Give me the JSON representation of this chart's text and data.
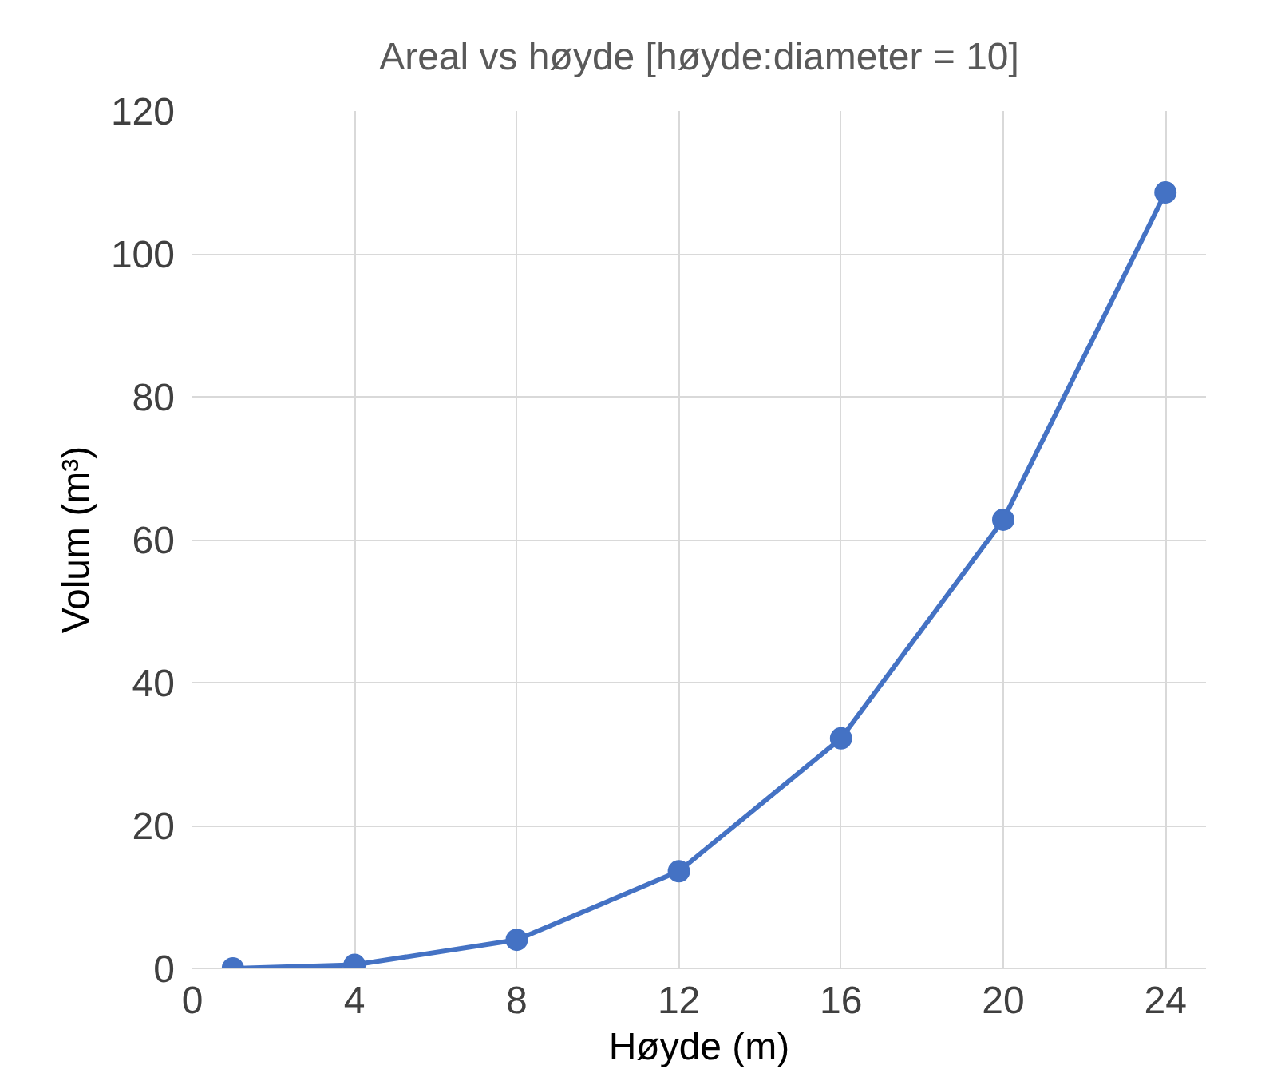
{
  "chart_data": {
    "type": "line",
    "title": "Areal vs høyde [høyde:diameter = 10]",
    "xlabel": "Høyde (m)",
    "ylabel": "Volum (m³)",
    "x": [
      1,
      4,
      8,
      12,
      16,
      20,
      24
    ],
    "series": [
      {
        "color": "#4472c4",
        "values": [
          0,
          0.5,
          4,
          13.6,
          32.2,
          62.8,
          108.6
        ]
      }
    ],
    "xlim": [
      0,
      25
    ],
    "xticks": [
      0,
      4,
      8,
      12,
      16,
      20,
      24
    ],
    "ylim": [
      0,
      120
    ],
    "yticks": [
      0,
      20,
      40,
      60,
      80,
      100,
      120
    ],
    "grid": true,
    "marker": "circle",
    "line_style": "solid"
  }
}
